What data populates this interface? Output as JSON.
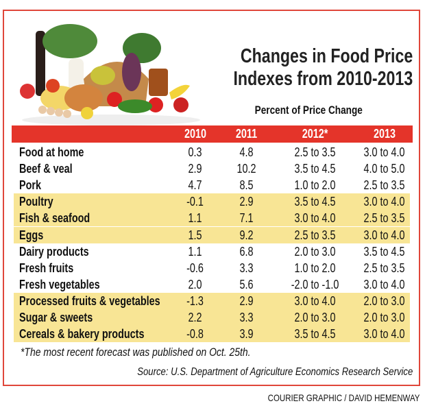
{
  "title_line1": "Changes in Food Price",
  "title_line2": "Indexes from 2010-2013",
  "subtitle": "Percent of Price Change",
  "colors": {
    "border": "#e0463a",
    "header_bar": "#e4342a",
    "highlight_row": "#f8e595"
  },
  "image": "food-basket-photo",
  "chart_data": {
    "type": "table",
    "columns": [
      "2010",
      "2011",
      "2012*",
      "2013"
    ],
    "rows": [
      {
        "label": "Food at home",
        "values": [
          "0.3",
          "4.8",
          "2.5 to 3.5",
          "3.0 to 4.0"
        ],
        "highlight": false
      },
      {
        "label": "Beef & veal",
        "values": [
          "2.9",
          "10.2",
          "3.5 to 4.5",
          "4.0 to 5.0"
        ],
        "highlight": false
      },
      {
        "label": "Pork",
        "values": [
          "4.7",
          "8.5",
          "1.0 to 2.0",
          "2.5 to 3.5"
        ],
        "highlight": false
      },
      {
        "label": "Poultry",
        "values": [
          "-0.1",
          "2.9",
          "3.5 to 4.5",
          "3.0 to 4.0"
        ],
        "highlight": true
      },
      {
        "label": "Fish & seafood",
        "values": [
          "1.1",
          "7.1",
          "3.0 to 4.0",
          "2.5 to 3.5"
        ],
        "highlight": true
      },
      {
        "label": "Eggs",
        "values": [
          "1.5",
          "9.2",
          "2.5 to 3.5",
          "3.0 to 4.0"
        ],
        "highlight": true
      },
      {
        "label": "Dairy products",
        "values": [
          "1.1",
          "6.8",
          "2.0 to 3.0",
          "3.5 to 4.5"
        ],
        "highlight": false
      },
      {
        "label": "Fresh fruits",
        "values": [
          "-0.6",
          "3.3",
          "1.0 to 2.0",
          "2.5 to 3.5"
        ],
        "highlight": false
      },
      {
        "label": "Fresh vegetables",
        "values": [
          "2.0",
          "5.6",
          "-2.0 to -1.0",
          "3.0 to 4.0"
        ],
        "highlight": false
      },
      {
        "label": "Processed fruits & vegetables",
        "values": [
          "-1.3",
          "2.9",
          "3.0 to 4.0",
          "2.0 to 3.0"
        ],
        "highlight": true
      },
      {
        "label": "Sugar & sweets",
        "values": [
          "2.2",
          "3.3",
          "2.0 to 3.0",
          "2.0 to 3.0"
        ],
        "highlight": true
      },
      {
        "label": "Cereals & bakery products",
        "values": [
          "-0.8",
          "3.9",
          "3.5 to 4.5",
          "3.0 to 4.0"
        ],
        "highlight": true
      }
    ]
  },
  "footnote": "*The most recent forecast was published on Oct. 25th.",
  "source": "Source: U.S. Department of Agriculture Economics Research Service",
  "credit": "COURIER GRAPHIC / DAVID HEMENWAY"
}
